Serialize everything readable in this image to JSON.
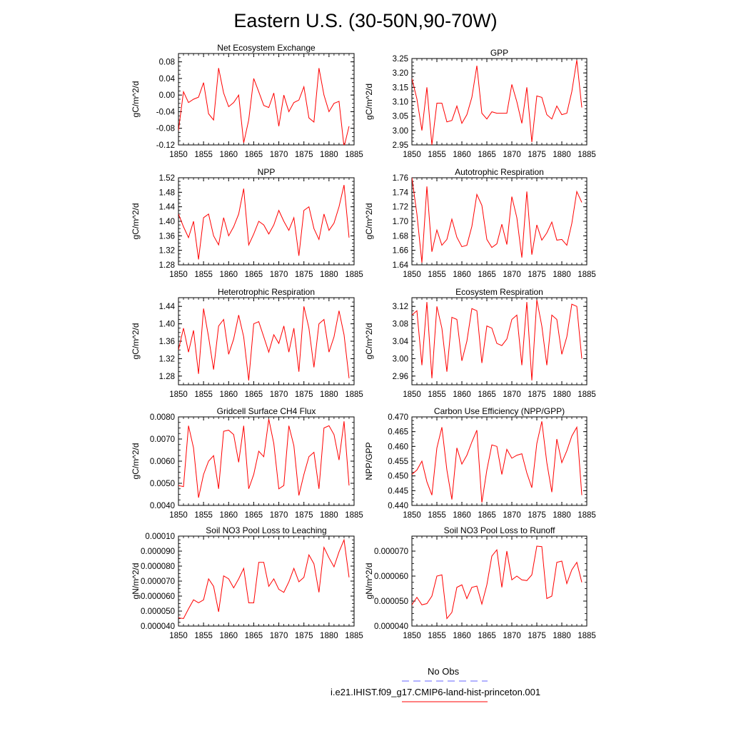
{
  "page": {
    "title": "Eastern U.S. (30-50N,90-70W)",
    "line_color": "#ff0000",
    "obs_color": "#6666ff"
  },
  "legend": {
    "items": [
      {
        "label": "No Obs",
        "color": "#6666ff",
        "style": "dashed"
      },
      {
        "label": "i.e21.IHIST.f09_g17.CMIP6-land-hist-princeton.001",
        "color": "#ff0000",
        "style": "solid"
      }
    ]
  },
  "chart_data": [
    {
      "type": "line",
      "title": "Net Ecosystem Exchange",
      "ylabel": "gC/m^2/d",
      "ylim": [
        -0.12,
        0.1
      ],
      "yticks": [
        -0.12,
        -0.08,
        -0.04,
        0.0,
        0.04,
        0.08
      ],
      "ytick_labels": [
        "-0.12",
        "-0.08",
        "-0.04",
        "0.00",
        "0.04",
        "0.08"
      ],
      "xlim": [
        1850,
        1885
      ],
      "xticks": [
        1850,
        1855,
        1860,
        1865,
        1870,
        1875,
        1880,
        1885
      ],
      "x": [
        1850,
        1851,
        1852,
        1853,
        1854,
        1855,
        1856,
        1857,
        1858,
        1859,
        1860,
        1861,
        1862,
        1863,
        1864,
        1865,
        1866,
        1867,
        1868,
        1869,
        1870,
        1871,
        1872,
        1873,
        1874,
        1875,
        1876,
        1877,
        1878,
        1879,
        1880,
        1881,
        1882,
        1883,
        1884
      ],
      "series": [
        {
          "values": [
            -0.085,
            0.008,
            -0.018,
            -0.01,
            -0.005,
            0.03,
            -0.045,
            -0.06,
            0.065,
            0.005,
            -0.028,
            -0.018,
            0.0,
            -0.115,
            -0.06,
            0.04,
            0.008,
            -0.025,
            -0.03,
            0.005,
            -0.075,
            0.0,
            -0.04,
            -0.018,
            -0.012,
            0.02,
            -0.055,
            -0.065,
            0.065,
            0.0,
            -0.04,
            -0.02,
            -0.015,
            -0.125,
            -0.075
          ]
        }
      ]
    },
    {
      "type": "line",
      "title": "GPP",
      "ylabel": "gC/m^2/d",
      "ylim": [
        2.95,
        3.25
      ],
      "yticks": [
        2.95,
        3.0,
        3.05,
        3.1,
        3.15,
        3.2,
        3.25
      ],
      "ytick_labels": [
        "2.95",
        "3.00",
        "3.05",
        "3.10",
        "3.15",
        "3.20",
        "3.25"
      ],
      "xlim": [
        1850,
        1885
      ],
      "xticks": [
        1850,
        1855,
        1860,
        1865,
        1870,
        1875,
        1880,
        1885
      ],
      "x": [
        1850,
        1851,
        1852,
        1853,
        1854,
        1855,
        1856,
        1857,
        1858,
        1859,
        1860,
        1861,
        1862,
        1863,
        1864,
        1865,
        1866,
        1867,
        1868,
        1869,
        1870,
        1871,
        1872,
        1873,
        1874,
        1875,
        1876,
        1877,
        1878,
        1879,
        1880,
        1881,
        1882,
        1883,
        1884
      ],
      "series": [
        {
          "values": [
            3.18,
            3.11,
            3.0,
            3.15,
            2.95,
            3.095,
            3.095,
            3.03,
            3.035,
            3.085,
            3.025,
            3.055,
            3.115,
            3.225,
            3.06,
            3.04,
            3.065,
            3.06,
            3.06,
            3.06,
            3.16,
            3.1,
            3.025,
            3.15,
            2.96,
            3.12,
            3.115,
            3.055,
            3.04,
            3.085,
            3.055,
            3.06,
            3.135,
            3.245,
            3.08
          ]
        }
      ]
    },
    {
      "type": "line",
      "title": "NPP",
      "ylabel": "gC/m^2/d",
      "ylim": [
        1.28,
        1.52
      ],
      "yticks": [
        1.28,
        1.32,
        1.36,
        1.4,
        1.44,
        1.48,
        1.52
      ],
      "ytick_labels": [
        "1.28",
        "1.32",
        "1.36",
        "1.40",
        "1.44",
        "1.48",
        "1.52"
      ],
      "xlim": [
        1850,
        1885
      ],
      "xticks": [
        1850,
        1855,
        1860,
        1865,
        1870,
        1875,
        1880,
        1885
      ],
      "x": [
        1850,
        1851,
        1852,
        1853,
        1854,
        1855,
        1856,
        1857,
        1858,
        1859,
        1860,
        1861,
        1862,
        1863,
        1864,
        1865,
        1866,
        1867,
        1868,
        1869,
        1870,
        1871,
        1872,
        1873,
        1874,
        1875,
        1876,
        1877,
        1878,
        1879,
        1880,
        1881,
        1882,
        1883,
        1884
      ],
      "series": [
        {
          "values": [
            1.42,
            1.385,
            1.355,
            1.4,
            1.295,
            1.41,
            1.42,
            1.36,
            1.335,
            1.41,
            1.36,
            1.385,
            1.42,
            1.49,
            1.335,
            1.365,
            1.4,
            1.39,
            1.365,
            1.39,
            1.43,
            1.4,
            1.375,
            1.41,
            1.305,
            1.43,
            1.44,
            1.38,
            1.35,
            1.42,
            1.375,
            1.395,
            1.44,
            1.5,
            1.355
          ]
        }
      ]
    },
    {
      "type": "line",
      "title": "Autotrophic Respiration",
      "ylabel": "gC/m^2/d",
      "ylim": [
        1.64,
        1.76
      ],
      "yticks": [
        1.64,
        1.66,
        1.68,
        1.7,
        1.72,
        1.74,
        1.76
      ],
      "ytick_labels": [
        "1.64",
        "1.66",
        "1.68",
        "1.70",
        "1.72",
        "1.74",
        "1.76"
      ],
      "xlim": [
        1850,
        1885
      ],
      "xticks": [
        1850,
        1855,
        1860,
        1865,
        1870,
        1875,
        1880,
        1885
      ],
      "x": [
        1850,
        1851,
        1852,
        1853,
        1854,
        1855,
        1856,
        1857,
        1858,
        1859,
        1860,
        1861,
        1862,
        1863,
        1864,
        1865,
        1866,
        1867,
        1868,
        1869,
        1870,
        1871,
        1872,
        1873,
        1874,
        1875,
        1876,
        1877,
        1878,
        1879,
        1880,
        1881,
        1882,
        1883,
        1884
      ],
      "series": [
        {
          "values": [
            1.76,
            1.71,
            1.643,
            1.748,
            1.658,
            1.688,
            1.667,
            1.675,
            1.703,
            1.678,
            1.665,
            1.667,
            1.693,
            1.737,
            1.722,
            1.675,
            1.664,
            1.669,
            1.696,
            1.668,
            1.734,
            1.705,
            1.65,
            1.741,
            1.654,
            1.695,
            1.674,
            1.684,
            1.699,
            1.674,
            1.675,
            1.667,
            1.697,
            1.741,
            1.726
          ]
        }
      ]
    },
    {
      "type": "line",
      "title": "Heterotrophic Respiration",
      "ylabel": "gC/m^2/d",
      "ylim": [
        1.26,
        1.46
      ],
      "yticks": [
        1.28,
        1.32,
        1.36,
        1.4,
        1.44
      ],
      "ytick_labels": [
        "1.28",
        "1.32",
        "1.36",
        "1.40",
        "1.44"
      ],
      "xlim": [
        1850,
        1885
      ],
      "xticks": [
        1850,
        1855,
        1860,
        1865,
        1870,
        1875,
        1880,
        1885
      ],
      "x": [
        1850,
        1851,
        1852,
        1853,
        1854,
        1855,
        1856,
        1857,
        1858,
        1859,
        1860,
        1861,
        1862,
        1863,
        1864,
        1865,
        1866,
        1867,
        1868,
        1869,
        1870,
        1871,
        1872,
        1873,
        1874,
        1875,
        1876,
        1877,
        1878,
        1879,
        1880,
        1881,
        1882,
        1883,
        1884
      ],
      "series": [
        {
          "values": [
            1.34,
            1.39,
            1.335,
            1.385,
            1.285,
            1.435,
            1.37,
            1.295,
            1.395,
            1.41,
            1.33,
            1.365,
            1.42,
            1.37,
            1.27,
            1.4,
            1.405,
            1.37,
            1.335,
            1.375,
            1.355,
            1.395,
            1.335,
            1.39,
            1.29,
            1.44,
            1.39,
            1.3,
            1.4,
            1.41,
            1.335,
            1.37,
            1.43,
            1.375,
            1.275
          ]
        }
      ]
    },
    {
      "type": "line",
      "title": "Ecosystem Respiration",
      "ylabel": "gC/m^2/d",
      "ylim": [
        2.94,
        3.14
      ],
      "yticks": [
        2.96,
        3.0,
        3.04,
        3.08,
        3.12
      ],
      "ytick_labels": [
        "2.96",
        "3.00",
        "3.04",
        "3.08",
        "3.12"
      ],
      "xlim": [
        1850,
        1885
      ],
      "xticks": [
        1850,
        1855,
        1860,
        1865,
        1870,
        1875,
        1880,
        1885
      ],
      "x": [
        1850,
        1851,
        1852,
        1853,
        1854,
        1855,
        1856,
        1857,
        1858,
        1859,
        1860,
        1861,
        1862,
        1863,
        1864,
        1865,
        1866,
        1867,
        1868,
        1869,
        1870,
        1871,
        1872,
        1873,
        1874,
        1875,
        1876,
        1877,
        1878,
        1879,
        1880,
        1881,
        1882,
        1883,
        1884
      ],
      "series": [
        {
          "values": [
            3.1,
            3.11,
            2.985,
            3.13,
            2.955,
            3.12,
            3.07,
            2.97,
            3.095,
            3.09,
            2.995,
            3.04,
            3.115,
            3.11,
            2.99,
            3.075,
            3.07,
            3.035,
            3.03,
            3.045,
            3.09,
            3.1,
            2.985,
            3.13,
            2.95,
            3.135,
            3.075,
            2.985,
            3.1,
            3.09,
            3.01,
            3.05,
            3.125,
            3.12,
            3.0
          ]
        }
      ]
    },
    {
      "type": "line",
      "title": "Gridcell Surface CH4 Flux",
      "ylabel": "gC/m^2/d",
      "ylim": [
        0.004,
        0.008
      ],
      "yticks": [
        0.004,
        0.005,
        0.006,
        0.007,
        0.008
      ],
      "ytick_labels": [
        "0.0040",
        "0.0050",
        "0.0060",
        "0.0070",
        "0.0080"
      ],
      "xlim": [
        1850,
        1885
      ],
      "xticks": [
        1850,
        1855,
        1860,
        1865,
        1870,
        1875,
        1880,
        1885
      ],
      "x": [
        1850,
        1851,
        1852,
        1853,
        1854,
        1855,
        1856,
        1857,
        1858,
        1859,
        1860,
        1861,
        1862,
        1863,
        1864,
        1865,
        1866,
        1867,
        1868,
        1869,
        1870,
        1871,
        1872,
        1873,
        1874,
        1875,
        1876,
        1877,
        1878,
        1879,
        1880,
        1881,
        1882,
        1883,
        1884
      ],
      "series": [
        {
          "values": [
            0.0049,
            0.00485,
            0.0076,
            0.0066,
            0.00435,
            0.0054,
            0.006,
            0.00625,
            0.00475,
            0.00735,
            0.0074,
            0.0072,
            0.00595,
            0.0076,
            0.00475,
            0.0054,
            0.00645,
            0.0062,
            0.0079,
            0.0068,
            0.00475,
            0.0049,
            0.0076,
            0.0067,
            0.00445,
            0.0054,
            0.0062,
            0.0064,
            0.00475,
            0.0075,
            0.0076,
            0.0072,
            0.00605,
            0.0078,
            0.0049
          ]
        }
      ]
    },
    {
      "type": "line",
      "title": "Carbon Use Efficiency (NPP/GPP)",
      "ylabel": "NPP/GPP",
      "ylim": [
        0.44,
        0.47
      ],
      "yticks": [
        0.44,
        0.445,
        0.45,
        0.455,
        0.46,
        0.465,
        0.47
      ],
      "ytick_labels": [
        "0.440",
        "0.445",
        "0.450",
        "0.455",
        "0.460",
        "0.465",
        "0.470"
      ],
      "xlim": [
        1850,
        1885
      ],
      "xticks": [
        1850,
        1855,
        1860,
        1865,
        1870,
        1875,
        1880,
        1885
      ],
      "x": [
        1850,
        1851,
        1852,
        1853,
        1854,
        1855,
        1856,
        1857,
        1858,
        1859,
        1860,
        1861,
        1862,
        1863,
        1864,
        1865,
        1866,
        1867,
        1868,
        1869,
        1870,
        1871,
        1872,
        1873,
        1874,
        1875,
        1876,
        1877,
        1878,
        1879,
        1880,
        1881,
        1882,
        1883,
        1884
      ],
      "series": [
        {
          "values": [
            0.4505,
            0.452,
            0.455,
            0.448,
            0.4435,
            0.4595,
            0.4665,
            0.452,
            0.442,
            0.4595,
            0.454,
            0.457,
            0.4615,
            0.4655,
            0.441,
            0.452,
            0.4605,
            0.46,
            0.4505,
            0.459,
            0.456,
            0.457,
            0.4575,
            0.451,
            0.446,
            0.461,
            0.4685,
            0.4545,
            0.4445,
            0.4625,
            0.4545,
            0.4585,
            0.4635,
            0.4665,
            0.4435
          ]
        }
      ]
    },
    {
      "type": "line",
      "title": "Soil NO3 Pool Loss to Leaching",
      "ylabel": "gN/m^2/d",
      "ylim": [
        4e-05,
        0.0001
      ],
      "yticks": [
        4e-05,
        5e-05,
        6e-05,
        7e-05,
        8e-05,
        9e-05,
        0.0001
      ],
      "ytick_labels": [
        "0.000040",
        "0.000050",
        "0.000060",
        "0.000070",
        "0.000080",
        "0.000090",
        "0.00010"
      ],
      "xlim": [
        1850,
        1885
      ],
      "xticks": [
        1850,
        1855,
        1860,
        1865,
        1870,
        1875,
        1880,
        1885
      ],
      "x": [
        1850,
        1851,
        1852,
        1853,
        1854,
        1855,
        1856,
        1857,
        1858,
        1859,
        1860,
        1861,
        1862,
        1863,
        1864,
        1865,
        1866,
        1867,
        1868,
        1869,
        1870,
        1871,
        1872,
        1873,
        1874,
        1875,
        1876,
        1877,
        1878,
        1879,
        1880,
        1881,
        1882,
        1883,
        1884
      ],
      "series": [
        {
          "values": [
            4.55e-05,
            4.5e-05,
            5.15e-05,
            5.75e-05,
            5.55e-05,
            5.75e-05,
            7.15e-05,
            6.65e-05,
            4.95e-05,
            7.35e-05,
            7.15e-05,
            6.55e-05,
            7.15e-05,
            7.85e-05,
            5.55e-05,
            5.55e-05,
            8.25e-05,
            8.25e-05,
            6.65e-05,
            7.15e-05,
            6.45e-05,
            6.25e-05,
            6.95e-05,
            7.85e-05,
            6.95e-05,
            7.25e-05,
            8.75e-05,
            8.15e-05,
            6.25e-05,
            9.25e-05,
            8.55e-05,
            7.95e-05,
            8.95e-05,
            9.75e-05,
            7.25e-05
          ]
        }
      ]
    },
    {
      "type": "line",
      "title": "Soil NO3 Pool Loss to Runoff",
      "ylabel": "gN/m^2/d",
      "ylim": [
        4e-05,
        7.6e-05
      ],
      "yticks": [
        4e-05,
        5e-05,
        6e-05,
        7e-05
      ],
      "ytick_labels": [
        "0.000040",
        "0.000050",
        "0.000060",
        "0.000070"
      ],
      "xlim": [
        1850,
        1885
      ],
      "xticks": [
        1850,
        1855,
        1860,
        1865,
        1870,
        1875,
        1880,
        1885
      ],
      "x": [
        1850,
        1851,
        1852,
        1853,
        1854,
        1855,
        1856,
        1857,
        1858,
        1859,
        1860,
        1861,
        1862,
        1863,
        1864,
        1865,
        1866,
        1867,
        1868,
        1869,
        1870,
        1871,
        1872,
        1873,
        1874,
        1875,
        1876,
        1877,
        1878,
        1879,
        1880,
        1881,
        1882,
        1883,
        1884
      ],
      "series": [
        {
          "values": [
            4.85e-05,
            5.15e-05,
            4.85e-05,
            4.9e-05,
            5.2e-05,
            6e-05,
            6.05e-05,
            4.3e-05,
            4.55e-05,
            5.55e-05,
            5.65e-05,
            5.1e-05,
            5.55e-05,
            5.6e-05,
            4.88e-05,
            5.65e-05,
            6.8e-05,
            7.05e-05,
            5.55e-05,
            7e-05,
            5.85e-05,
            6e-05,
            5.85e-05,
            5.82e-05,
            6.05e-05,
            7.2e-05,
            7.18e-05,
            5.1e-05,
            5.2e-05,
            6.55e-05,
            6.6e-05,
            5.7e-05,
            6.25e-05,
            6.55e-05,
            5.75e-05
          ]
        }
      ]
    }
  ]
}
